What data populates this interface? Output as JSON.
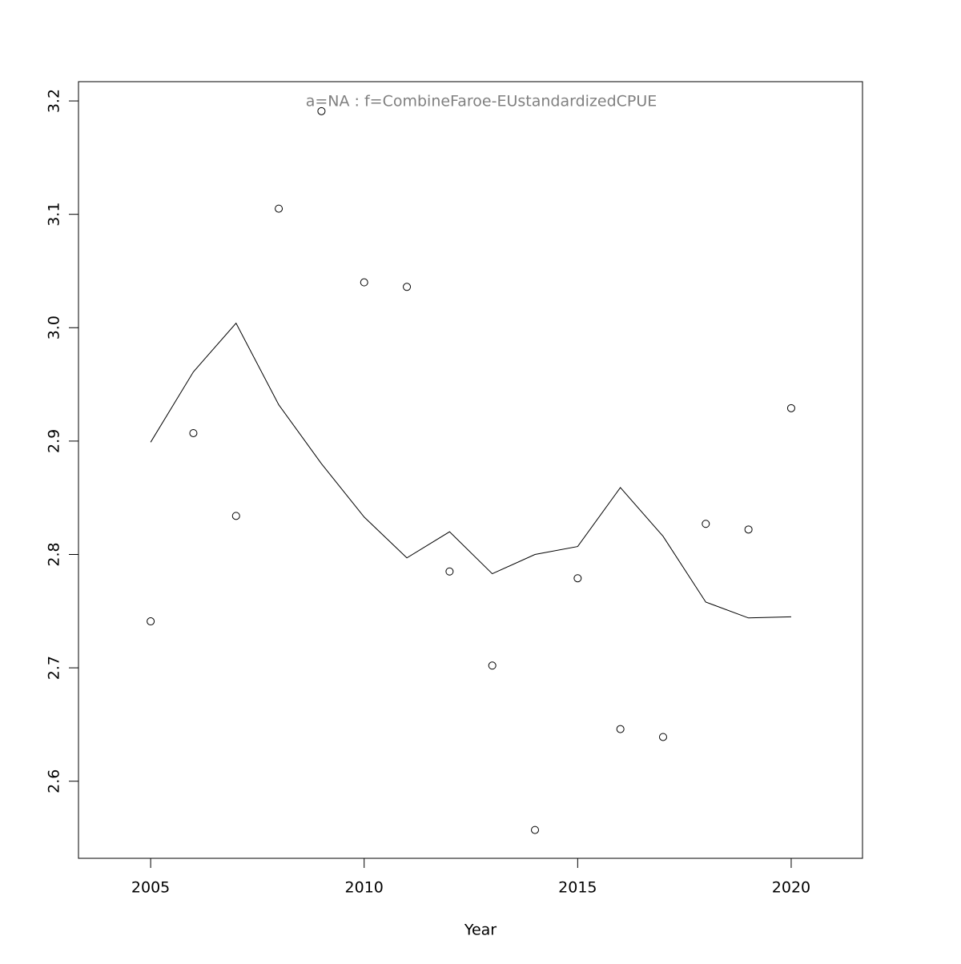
{
  "chart_data": {
    "type": "line",
    "title": "a=NA  :  f=CombineFaroe-EUstandardizedCPUE",
    "x_label": "Year",
    "x": [
      2005,
      2006,
      2007,
      2008,
      2009,
      2010,
      2011,
      2012,
      2013,
      2014,
      2015,
      2016,
      2017,
      2018,
      2019,
      2020
    ],
    "series": [
      {
        "marker": "circle",
        "color": "#000000",
        "values": [
          2.741,
          2.907,
          2.834,
          3.105,
          3.191,
          3.04,
          3.036,
          2.785,
          2.702,
          2.557,
          2.779,
          2.646,
          2.639,
          2.827,
          2.822,
          2.929
        ]
      },
      {
        "marker": "none",
        "color": "#000000",
        "values": [
          2.899,
          2.961,
          3.004,
          2.932,
          2.88,
          2.833,
          2.797,
          2.82,
          2.783,
          2.8,
          2.807,
          2.859,
          2.816,
          2.758,
          2.744,
          2.745
        ]
      }
    ],
    "xlim": [
      2003.31,
      2021.67
    ],
    "ylim": [
      2.532,
      3.217
    ],
    "xticks": [
      2005,
      2010,
      2015,
      2020
    ],
    "yticks": [
      2.6,
      2.7,
      2.8,
      2.9,
      {
        "value": 3,
        "label": "3.0"
      },
      3.1,
      3.2
    ],
    "title_color": "#808080"
  }
}
